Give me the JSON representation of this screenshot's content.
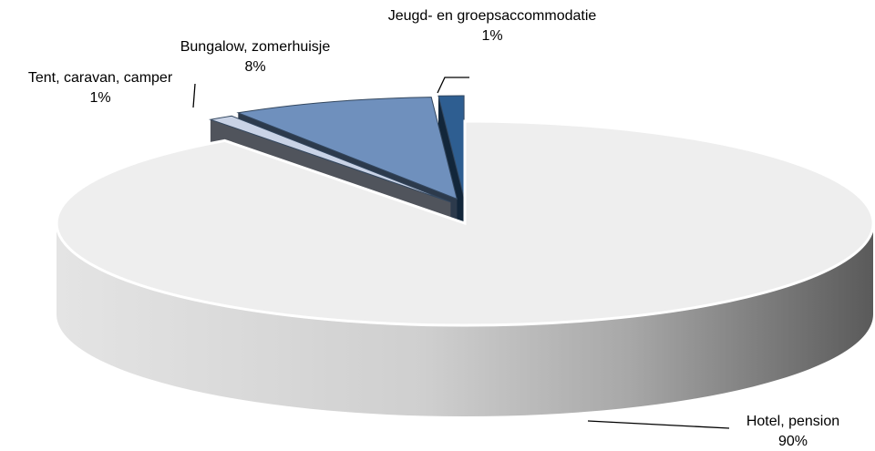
{
  "chart_data": {
    "type": "pie",
    "categories": [
      "Hotel, pension",
      "Tent, caravan, camper",
      "Bungalow, zomerhuisje",
      "Jeugd- en groepsaccommodatie"
    ],
    "values": [
      90,
      1,
      8,
      1
    ],
    "value_labels": [
      "90%",
      "1%",
      "8%",
      "1%"
    ],
    "colors": [
      "#eeeeee",
      "#c9d3e6",
      "#6f90bd",
      "#2e5e91"
    ]
  }
}
